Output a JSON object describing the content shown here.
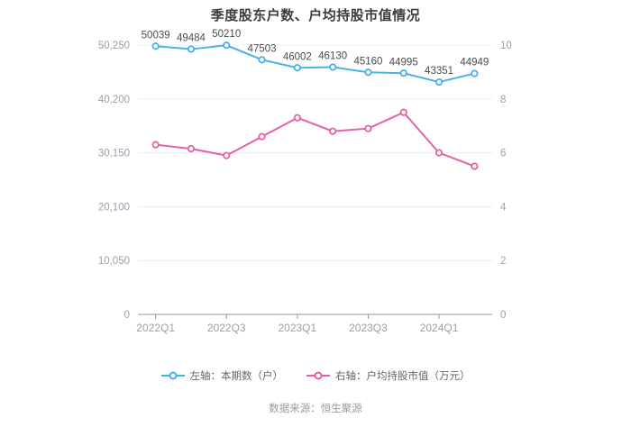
{
  "title": "季度股东户数、户均持股市值情况",
  "source": "数据来源：恒生聚源",
  "colors": {
    "shareholders_line": "#4ab0e8",
    "market_value_line": "#e660a8",
    "grid_line": "#e7edf4",
    "axis_line": "#999999",
    "tick_label": "#9b9fa8",
    "data_label": "#4b4b4b",
    "title_text": "#3d3d3d"
  },
  "chart_data": {
    "type": "line",
    "title": "季度股东户数、户均持股市值情况",
    "categories": [
      "2022Q1",
      "2022Q2",
      "2022Q3",
      "2022Q4",
      "2023Q1",
      "2023Q2",
      "2023Q3",
      "2023Q4",
      "2024Q1",
      "2024Q2"
    ],
    "x_ticks": [
      {
        "index": 0,
        "label": "2022Q1"
      },
      {
        "index": 2,
        "label": "2022Q3"
      },
      {
        "index": 4,
        "label": "2023Q1"
      },
      {
        "index": 6,
        "label": "2023Q3"
      },
      {
        "index": 8,
        "label": "2024Q1"
      }
    ],
    "series": [
      {
        "name": "左轴：本期数（户）",
        "axis": "left",
        "color": "#4ab0e8",
        "show_labels": true,
        "values": [
          50039,
          49484,
          50210,
          47503,
          46002,
          46130,
          45160,
          44995,
          43351,
          44949
        ]
      },
      {
        "name": "右轴：户均持股市值（万元）",
        "axis": "right",
        "color": "#e660a8",
        "show_labels": false,
        "values": [
          6.3,
          6.15,
          5.9,
          6.6,
          7.3,
          6.8,
          6.9,
          7.5,
          6.0,
          5.5
        ]
      }
    ],
    "left_axis": {
      "min": 0,
      "max": 50250,
      "ticks": [
        0,
        10050,
        20100,
        30150,
        40200,
        50250
      ],
      "tick_labels": [
        "0",
        "10,050",
        "20,100",
        "30,150",
        "40,200",
        "50,250"
      ]
    },
    "right_axis": {
      "min": 0,
      "max": 10,
      "ticks": [
        0,
        2,
        4,
        6,
        8,
        10
      ],
      "tick_labels": [
        "0",
        "2",
        "4",
        "6",
        "8",
        "10"
      ]
    },
    "legend_position": "bottom",
    "grid": true
  }
}
